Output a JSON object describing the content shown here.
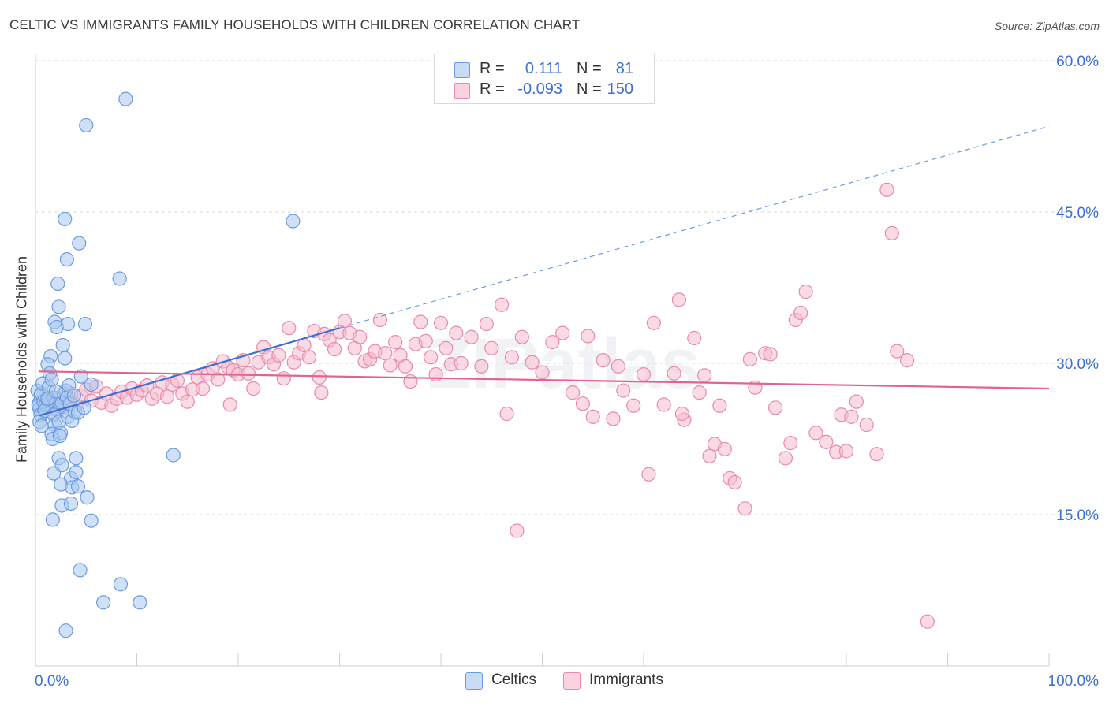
{
  "title": "CELTIC VS IMMIGRANTS FAMILY HOUSEHOLDS WITH CHILDREN CORRELATION CHART",
  "source": "Source: ZipAtlas.com",
  "watermark": "ZIPatlas",
  "legend_stats": [
    {
      "r_label": "R =",
      "r_value": "0.111",
      "n_label": "N =",
      "n_value": "81"
    },
    {
      "r_label": "R =",
      "r_value": "-0.093",
      "n_label": "N =",
      "n_value": "150"
    }
  ],
  "legend_bottom": [
    "Celtics",
    "Immigrants"
  ],
  "colors": {
    "celtics_fill": "#a9c8f0",
    "celtics_stroke": "#6b9be0",
    "celtics_line": "#3b6fd4",
    "immigrants_fill": "#f6bcd0",
    "immigrants_stroke": "#e88aab",
    "immigrants_line": "#e0648f",
    "axis_text": "#3b6fd4",
    "grid": "#d8d8d8"
  },
  "chart_data": {
    "type": "scatter",
    "title": "CELTIC VS IMMIGRANTS FAMILY HOUSEHOLDS WITH CHILDREN CORRELATION CHART",
    "xlabel": "",
    "ylabel": "Family Households with Children",
    "xlim": [
      0,
      100
    ],
    "ylim": [
      0,
      60
    ],
    "x_tick_labels": [
      "0.0%",
      "100.0%"
    ],
    "y_ticks": [
      15,
      30,
      45,
      60
    ],
    "y_tick_labels": [
      "15.0%",
      "30.0%",
      "45.0%",
      "60.0%"
    ],
    "grid": true,
    "legend_position": "top-center",
    "series": [
      {
        "name": "Celtics",
        "r": 0.111,
        "n": 81,
        "trend_solid": {
          "x": [
            0.3,
            30
          ],
          "y": [
            24.8,
            33.5
          ]
        },
        "trend_dashed": {
          "x": [
            30,
            100
          ],
          "y": [
            33.5,
            53.5
          ]
        },
        "points": [
          [
            0.2,
            27.3
          ],
          [
            0.3,
            26.0
          ],
          [
            0.4,
            25.5
          ],
          [
            0.5,
            26.8
          ],
          [
            0.6,
            27.0
          ],
          [
            0.7,
            28.0
          ],
          [
            0.3,
            25.8
          ],
          [
            0.5,
            24.9
          ],
          [
            0.8,
            26.2
          ],
          [
            1.0,
            25.9
          ],
          [
            1.2,
            26.4
          ],
          [
            0.4,
            24.2
          ],
          [
            0.6,
            23.8
          ],
          [
            0.9,
            25.3
          ],
          [
            1.3,
            27.6
          ],
          [
            1.5,
            30.7
          ],
          [
            1.2,
            29.9
          ],
          [
            1.4,
            29.0
          ],
          [
            1.6,
            28.4
          ],
          [
            1.8,
            26.6
          ],
          [
            2.0,
            26.0
          ],
          [
            2.2,
            25.3
          ],
          [
            2.4,
            25.7
          ],
          [
            2.6,
            26.1
          ],
          [
            2.8,
            27.0
          ],
          [
            3.0,
            27.3
          ],
          [
            3.1,
            26.6
          ],
          [
            3.3,
            27.8
          ],
          [
            3.4,
            26.0
          ],
          [
            1.8,
            24.9
          ],
          [
            1.9,
            23.9
          ],
          [
            1.6,
            23.0
          ],
          [
            2.3,
            24.2
          ],
          [
            2.5,
            23.1
          ],
          [
            3.2,
            24.7
          ],
          [
            1.7,
            22.5
          ],
          [
            2.4,
            22.8
          ],
          [
            3.6,
            24.3
          ],
          [
            3.9,
            25.2
          ],
          [
            4.2,
            25.1
          ],
          [
            4.5,
            28.7
          ],
          [
            5.5,
            27.9
          ],
          [
            2.7,
            31.8
          ],
          [
            2.9,
            30.5
          ],
          [
            1.9,
            34.1
          ],
          [
            2.1,
            33.6
          ],
          [
            2.3,
            35.6
          ],
          [
            2.2,
            37.9
          ],
          [
            3.1,
            40.3
          ],
          [
            4.3,
            41.9
          ],
          [
            2.9,
            44.3
          ],
          [
            4.9,
            33.9
          ],
          [
            3.2,
            33.9
          ],
          [
            8.3,
            38.4
          ],
          [
            5.0,
            53.6
          ],
          [
            8.9,
            56.2
          ],
          [
            25.4,
            44.1
          ],
          [
            13.6,
            20.9
          ],
          [
            2.3,
            20.6
          ],
          [
            4.0,
            20.6
          ],
          [
            2.6,
            19.9
          ],
          [
            1.8,
            19.1
          ],
          [
            3.5,
            18.6
          ],
          [
            4.0,
            19.2
          ],
          [
            2.5,
            18.0
          ],
          [
            3.6,
            17.7
          ],
          [
            4.2,
            17.8
          ],
          [
            5.1,
            16.7
          ],
          [
            2.6,
            15.9
          ],
          [
            3.5,
            16.1
          ],
          [
            1.7,
            14.5
          ],
          [
            5.5,
            14.4
          ],
          [
            4.4,
            9.5
          ],
          [
            8.4,
            8.1
          ],
          [
            6.7,
            6.3
          ],
          [
            10.3,
            6.3
          ],
          [
            3.0,
            3.5
          ],
          [
            1.2,
            26.5
          ],
          [
            2.0,
            27.2
          ],
          [
            3.8,
            26.8
          ],
          [
            4.8,
            25.6
          ]
        ]
      },
      {
        "name": "Immigrants",
        "r": -0.093,
        "n": 150,
        "trend_solid": {
          "x": [
            0.3,
            100
          ],
          "y": [
            29.2,
            27.5
          ]
        },
        "points": [
          [
            1.2,
            25.6
          ],
          [
            1.5,
            26.2
          ],
          [
            1.8,
            25.0
          ],
          [
            2.2,
            26.4
          ],
          [
            2.6,
            25.5
          ],
          [
            3.0,
            26.1
          ],
          [
            3.5,
            27.0
          ],
          [
            4.0,
            25.9
          ],
          [
            4.5,
            26.8
          ],
          [
            5.0,
            27.4
          ],
          [
            5.5,
            26.3
          ],
          [
            6.0,
            27.7
          ],
          [
            6.5,
            26.1
          ],
          [
            7.0,
            27.0
          ],
          [
            7.5,
            25.8
          ],
          [
            8.0,
            26.5
          ],
          [
            8.5,
            27.2
          ],
          [
            9.0,
            26.6
          ],
          [
            9.5,
            27.5
          ],
          [
            10.0,
            26.9
          ],
          [
            10.5,
            27.3
          ],
          [
            11.0,
            27.8
          ],
          [
            11.5,
            26.5
          ],
          [
            12.0,
            27.0
          ],
          [
            12.5,
            28.1
          ],
          [
            13.0,
            26.7
          ],
          [
            13.5,
            27.9
          ],
          [
            14.0,
            28.3
          ],
          [
            14.5,
            27.0
          ],
          [
            15.0,
            26.2
          ],
          [
            15.5,
            27.4
          ],
          [
            16.0,
            28.6
          ],
          [
            16.5,
            27.5
          ],
          [
            17.0,
            28.9
          ],
          [
            17.5,
            29.5
          ],
          [
            18.0,
            28.4
          ],
          [
            18.5,
            30.2
          ],
          [
            19.0,
            29.6
          ],
          [
            19.5,
            29.3
          ],
          [
            20.0,
            28.9
          ],
          [
            20.5,
            30.3
          ],
          [
            21.0,
            29.0
          ],
          [
            21.5,
            27.5
          ],
          [
            22.0,
            30.1
          ],
          [
            22.5,
            31.6
          ],
          [
            23.0,
            30.6
          ],
          [
            23.5,
            29.9
          ],
          [
            24.0,
            30.8
          ],
          [
            24.5,
            28.5
          ],
          [
            25.0,
            33.5
          ],
          [
            25.5,
            30.1
          ],
          [
            26.0,
            31.0
          ],
          [
            26.5,
            31.8
          ],
          [
            27.0,
            30.6
          ],
          [
            27.5,
            33.2
          ],
          [
            28.0,
            28.6
          ],
          [
            28.5,
            32.9
          ],
          [
            29.0,
            32.3
          ],
          [
            29.5,
            31.4
          ],
          [
            30.0,
            33.1
          ],
          [
            30.5,
            34.2
          ],
          [
            31.0,
            33.0
          ],
          [
            31.5,
            31.5
          ],
          [
            32.0,
            32.6
          ],
          [
            32.5,
            30.2
          ],
          [
            33.0,
            30.4
          ],
          [
            33.5,
            31.2
          ],
          [
            34.0,
            34.3
          ],
          [
            34.5,
            31.0
          ],
          [
            35.0,
            29.8
          ],
          [
            35.5,
            32.1
          ],
          [
            36.0,
            30.8
          ],
          [
            36.5,
            29.7
          ],
          [
            37.0,
            28.2
          ],
          [
            37.5,
            31.9
          ],
          [
            38.0,
            34.1
          ],
          [
            38.5,
            32.2
          ],
          [
            39.0,
            30.6
          ],
          [
            39.5,
            28.9
          ],
          [
            40.0,
            34.0
          ],
          [
            40.5,
            31.5
          ],
          [
            41.0,
            29.9
          ],
          [
            41.5,
            33.0
          ],
          [
            42.0,
            30.0
          ],
          [
            43.0,
            32.6
          ],
          [
            44.0,
            29.7
          ],
          [
            44.5,
            33.9
          ],
          [
            45.0,
            31.5
          ],
          [
            46.0,
            35.8
          ],
          [
            47.0,
            30.6
          ],
          [
            48.0,
            32.6
          ],
          [
            49.0,
            30.1
          ],
          [
            50.0,
            29.1
          ],
          [
            51.0,
            32.1
          ],
          [
            52.0,
            33.0
          ],
          [
            53.0,
            27.1
          ],
          [
            54.0,
            26.0
          ],
          [
            55.0,
            24.7
          ],
          [
            56.0,
            30.3
          ],
          [
            57.0,
            24.5
          ],
          [
            58.0,
            27.3
          ],
          [
            59.0,
            25.8
          ],
          [
            60.0,
            28.9
          ],
          [
            61.0,
            34.0
          ],
          [
            62.0,
            25.9
          ],
          [
            63.0,
            29.0
          ],
          [
            64.0,
            24.4
          ],
          [
            65.0,
            32.5
          ],
          [
            66.0,
            28.8
          ],
          [
            67.0,
            22.0
          ],
          [
            67.5,
            25.8
          ],
          [
            68.0,
            21.5
          ],
          [
            68.5,
            18.6
          ],
          [
            69.0,
            18.2
          ],
          [
            70.0,
            15.6
          ],
          [
            70.5,
            30.4
          ],
          [
            71.0,
            27.6
          ],
          [
            72.0,
            31.0
          ],
          [
            73.0,
            25.6
          ],
          [
            74.0,
            20.6
          ],
          [
            75.0,
            34.3
          ],
          [
            75.5,
            35.0
          ],
          [
            76.0,
            37.1
          ],
          [
            77.0,
            23.1
          ],
          [
            78.0,
            22.2
          ],
          [
            79.0,
            21.2
          ],
          [
            79.5,
            24.9
          ],
          [
            80.0,
            21.3
          ],
          [
            81.0,
            26.2
          ],
          [
            82.0,
            23.9
          ],
          [
            83.0,
            21.0
          ],
          [
            84.0,
            47.2
          ],
          [
            84.5,
            42.9
          ],
          [
            85.0,
            31.2
          ],
          [
            86.0,
            30.3
          ],
          [
            80.5,
            24.7
          ],
          [
            74.5,
            22.1
          ],
          [
            72.5,
            30.9
          ],
          [
            66.5,
            20.8
          ],
          [
            63.5,
            36.3
          ],
          [
            46.5,
            25.0
          ],
          [
            28.2,
            27.1
          ],
          [
            19.2,
            25.9
          ],
          [
            60.5,
            19.0
          ],
          [
            63.8,
            25.0
          ],
          [
            57.5,
            29.7
          ],
          [
            54.5,
            32.7
          ],
          [
            65.5,
            27.1
          ],
          [
            47.5,
            13.4
          ],
          [
            88.0,
            4.4
          ]
        ]
      }
    ]
  }
}
